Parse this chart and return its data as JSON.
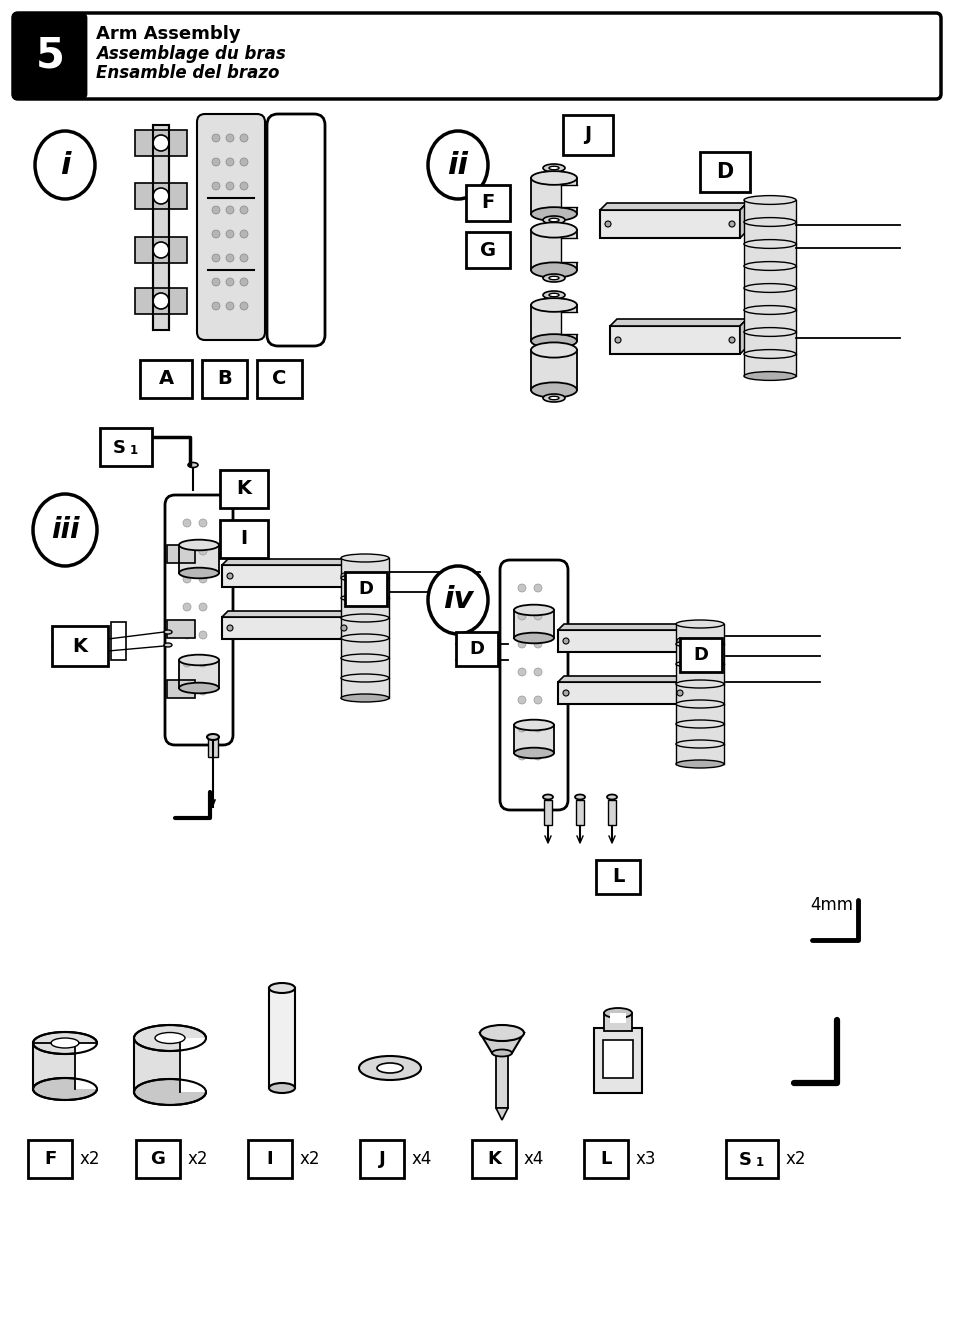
{
  "title_num": "5",
  "title_lines": [
    "Arm Assembly",
    "Assemblage du bras",
    "Ensamble del brazo"
  ],
  "bg_color": "#ffffff",
  "dim_label": "4mm",
  "parts_row": [
    {
      "label": "F",
      "count": "x2"
    },
    {
      "label": "G",
      "count": "x2"
    },
    {
      "label": "I",
      "count": "x2"
    },
    {
      "label": "J",
      "count": "x4"
    },
    {
      "label": "K",
      "count": "x4"
    },
    {
      "label": "L",
      "count": "x3"
    },
    {
      "label": "S1",
      "count": "x2"
    }
  ]
}
